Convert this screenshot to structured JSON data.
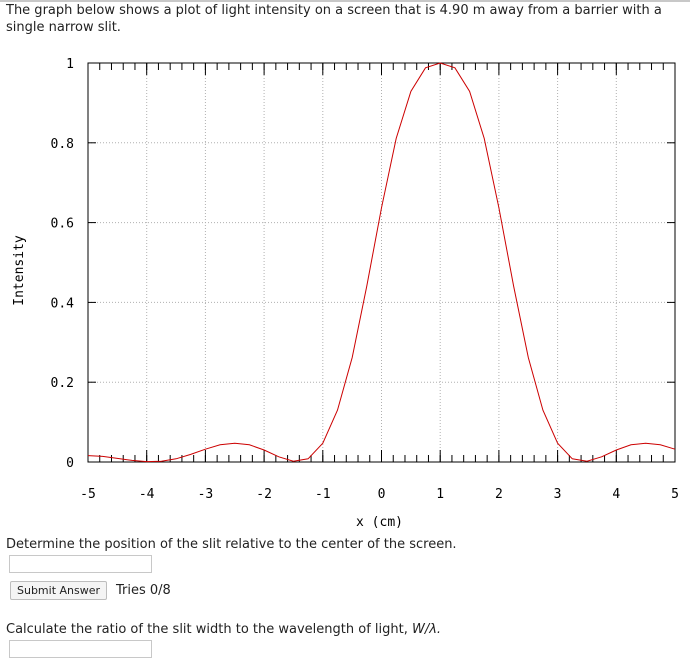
{
  "problem": {
    "intro": "The graph below shows a plot of light intensity on a screen that is 4.90 m away from a barrier with a single narrow slit.",
    "question_1": "Determine the position of the slit relative to the center of the screen.",
    "submit_label": "Submit Answer",
    "tries": "Tries 0/8",
    "question_2_text": "Calculate the ratio of the slit width to the wavelength of light,",
    "question_2_var": "W/λ."
  },
  "chart_data": {
    "type": "line",
    "xlabel": "x (cm)",
    "ylabel": "Intensity",
    "xlim": [
      -5,
      5
    ],
    "ylim": [
      0,
      1
    ],
    "x_ticks": [
      "-5",
      "-4",
      "-3",
      "-2",
      "-1",
      "0",
      "1",
      "2",
      "3",
      "4",
      "5"
    ],
    "y_ticks": [
      "0",
      "0.2",
      "0.4",
      "0.6",
      "0.8",
      "1"
    ],
    "grid": true,
    "line_color": "#cc0000",
    "series": [
      {
        "x": [
          -5,
          -4.75,
          -4.5,
          -4.25,
          -4,
          -3.75,
          -3.5,
          -3.25,
          -3,
          -2.75,
          -2.5,
          -2.25,
          -2,
          -1.75,
          -1.5,
          -1.25,
          -1,
          -0.75,
          -0.5,
          -0.25,
          0,
          0.25,
          0.5,
          0.75,
          1,
          1.25,
          1.5,
          1.75,
          2,
          2.25,
          2.5,
          2.75,
          3,
          3.25,
          3.5,
          3.75,
          4,
          4.25,
          4.5,
          4.75,
          5
        ],
        "y": [
          0.016,
          0.014,
          0.009,
          0.004,
          0.001,
          0.002,
          0.008,
          0.019,
          0.032,
          0.043,
          0.047,
          0.043,
          0.03,
          0.013,
          0.002,
          0.008,
          0.047,
          0.13,
          0.262,
          0.441,
          0.637,
          0.811,
          0.929,
          0.988,
          1.0,
          0.988,
          0.929,
          0.811,
          0.637,
          0.441,
          0.262,
          0.13,
          0.047,
          0.008,
          0.002,
          0.013,
          0.03,
          0.043,
          0.047,
          0.043,
          0.032
        ]
      }
    ]
  }
}
